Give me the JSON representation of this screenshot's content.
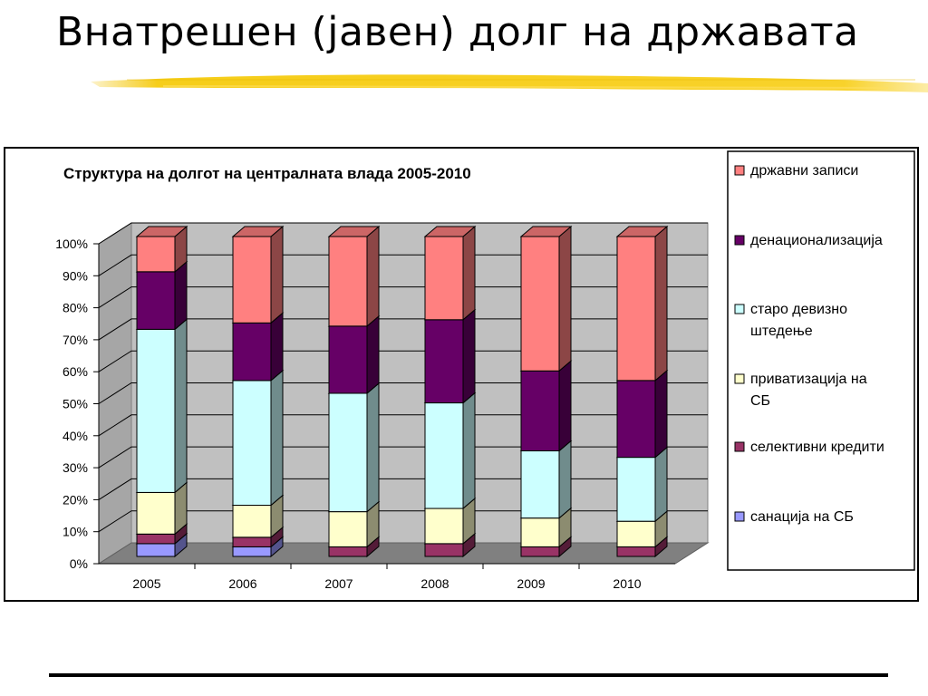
{
  "slide": {
    "title": "Внатрешен (јавен) долг на државата"
  },
  "chart_data": {
    "type": "bar",
    "stacked": true,
    "percent": true,
    "three_d": true,
    "title": "Структура на долгот на централната влада 2005-2010",
    "categories": [
      "2005",
      "2006",
      "2007",
      "2008",
      "2009",
      "2010"
    ],
    "y_ticks": [
      "0%",
      "10%",
      "20%",
      "30%",
      "40%",
      "50%",
      "60%",
      "70%",
      "80%",
      "90%",
      "100%"
    ],
    "ylim": [
      0,
      100
    ],
    "grid": true,
    "legend_position": "right",
    "series": [
      {
        "name": "санација на СБ",
        "values": [
          4,
          3,
          0,
          0,
          0,
          0
        ],
        "color": "#9999FF"
      },
      {
        "name": "селективни кредити",
        "values": [
          3,
          3,
          3,
          4,
          3,
          3
        ],
        "color": "#993366"
      },
      {
        "name": "приватизација на СБ",
        "values": [
          13,
          10,
          11,
          11,
          9,
          8
        ],
        "color": "#FFFFCC"
      },
      {
        "name": "старо девизно штедење",
        "values": [
          51,
          39,
          37,
          33,
          21,
          20
        ],
        "color": "#CCFFFF"
      },
      {
        "name": "денационализација",
        "values": [
          18,
          18,
          21,
          26,
          25,
          24
        ],
        "color": "#660066"
      },
      {
        "name": "државни записи",
        "values": [
          11,
          27,
          28,
          26,
          42,
          45
        ],
        "color": "#FF8080"
      }
    ],
    "legend_entries": [
      {
        "line1": "државни записи",
        "line2": ""
      },
      {
        "line1": "денационализација",
        "line2": ""
      },
      {
        "line1": "старо девизно",
        "line2": "штедење"
      },
      {
        "line1": "приватизација на",
        "line2": "СБ"
      },
      {
        "line1": "селективни кредити",
        "line2": ""
      },
      {
        "line1": "санација на СБ",
        "line2": ""
      }
    ]
  }
}
